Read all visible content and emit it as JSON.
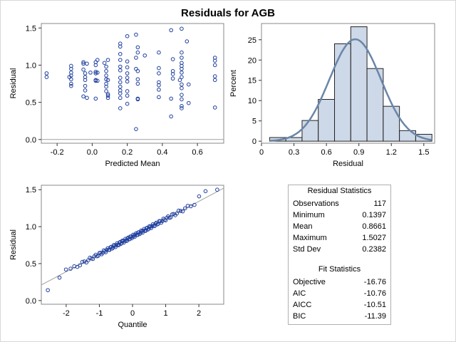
{
  "title": "Residuals for AGB",
  "chart_data": [
    {
      "type": "scatter",
      "name": "residual-vs-predicted",
      "xlabel": "Predicted Mean",
      "ylabel": "Residual",
      "xlim": [
        -0.29,
        0.75
      ],
      "ylim": [
        -0.05,
        1.56
      ],
      "xticks": [
        -0.2,
        0.0,
        0.2,
        0.4,
        0.6
      ],
      "xtick_labels": [
        "-0.2",
        "0.0",
        "0.2",
        "0.4",
        "0.6"
      ],
      "yticks": [
        0.0,
        0.5,
        1.0,
        1.5
      ],
      "ytick_labels": [
        "0.0",
        "0.5",
        "1.0",
        "1.5"
      ],
      "reference_line_y": 0,
      "points": [
        [
          -0.26,
          0.89
        ],
        [
          -0.26,
          0.84
        ],
        [
          -0.13,
          0.84
        ],
        [
          -0.12,
          0.99
        ],
        [
          -0.12,
          0.95
        ],
        [
          -0.12,
          0.9
        ],
        [
          -0.12,
          0.86
        ],
        [
          -0.12,
          0.81
        ],
        [
          -0.12,
          0.75
        ],
        [
          -0.12,
          0.72
        ],
        [
          -0.05,
          1.04
        ],
        [
          -0.05,
          1.02
        ],
        [
          -0.05,
          0.94
        ],
        [
          -0.04,
          0.89
        ],
        [
          -0.04,
          0.84
        ],
        [
          -0.04,
          0.8
        ],
        [
          -0.04,
          0.72
        ],
        [
          -0.04,
          0.66
        ],
        [
          -0.05,
          0.58
        ],
        [
          -0.03,
          0.56
        ],
        [
          -0.03,
          1.02
        ],
        [
          -0.01,
          0.9
        ],
        [
          0.02,
          1.04
        ],
        [
          0.02,
          1.0
        ],
        [
          0.02,
          0.91
        ],
        [
          0.02,
          0.89
        ],
        [
          0.02,
          0.8
        ],
        [
          0.02,
          0.79
        ],
        [
          0.02,
          0.55
        ],
        [
          0.03,
          1.07
        ],
        [
          0.03,
          0.9
        ],
        [
          0.03,
          0.79
        ],
        [
          0.07,
          1.03
        ],
        [
          0.08,
          0.98
        ],
        [
          0.08,
          0.92
        ],
        [
          0.08,
          0.86
        ],
        [
          0.08,
          0.81
        ],
        [
          0.08,
          0.75
        ],
        [
          0.08,
          0.71
        ],
        [
          0.08,
          0.65
        ],
        [
          0.09,
          0.61
        ],
        [
          0.09,
          0.59
        ],
        [
          0.09,
          0.56
        ],
        [
          0.09,
          1.07
        ],
        [
          0.09,
          0.8
        ],
        [
          0.16,
          1.29
        ],
        [
          0.16,
          1.25
        ],
        [
          0.16,
          1.15
        ],
        [
          0.16,
          1.07
        ],
        [
          0.16,
          0.98
        ],
        [
          0.16,
          0.93
        ],
        [
          0.16,
          0.83
        ],
        [
          0.16,
          0.77
        ],
        [
          0.16,
          0.71
        ],
        [
          0.16,
          0.66
        ],
        [
          0.16,
          0.62
        ],
        [
          0.16,
          0.56
        ],
        [
          0.16,
          0.42
        ],
        [
          0.2,
          1.39
        ],
        [
          0.2,
          1.05
        ],
        [
          0.2,
          0.97
        ],
        [
          0.2,
          0.89
        ],
        [
          0.2,
          0.83
        ],
        [
          0.2,
          0.78
        ],
        [
          0.2,
          0.65
        ],
        [
          0.2,
          0.59
        ],
        [
          0.2,
          0.48
        ],
        [
          0.25,
          1.41
        ],
        [
          0.26,
          1.24
        ],
        [
          0.26,
          1.17
        ],
        [
          0.25,
          1.1
        ],
        [
          0.25,
          0.95
        ],
        [
          0.26,
          0.92
        ],
        [
          0.26,
          0.81
        ],
        [
          0.26,
          0.75
        ],
        [
          0.26,
          0.54
        ],
        [
          0.26,
          0.55
        ],
        [
          0.25,
          0.14
        ],
        [
          0.3,
          1.13
        ],
        [
          0.38,
          1.17
        ],
        [
          0.38,
          0.96
        ],
        [
          0.38,
          0.89
        ],
        [
          0.38,
          0.77
        ],
        [
          0.38,
          0.73
        ],
        [
          0.38,
          0.67
        ],
        [
          0.38,
          0.57
        ],
        [
          0.45,
          1.47
        ],
        [
          0.46,
          1.08
        ],
        [
          0.46,
          0.92
        ],
        [
          0.46,
          0.88
        ],
        [
          0.46,
          0.82
        ],
        [
          0.45,
          0.55
        ],
        [
          0.45,
          0.31
        ],
        [
          0.51,
          1.49
        ],
        [
          0.51,
          1.17
        ],
        [
          0.51,
          1.1
        ],
        [
          0.51,
          1.03
        ],
        [
          0.51,
          0.99
        ],
        [
          0.51,
          0.95
        ],
        [
          0.51,
          0.9
        ],
        [
          0.51,
          0.84
        ],
        [
          0.5,
          0.8
        ],
        [
          0.51,
          0.74
        ],
        [
          0.51,
          0.69
        ],
        [
          0.51,
          0.6
        ],
        [
          0.51,
          0.54
        ],
        [
          0.51,
          0.45
        ],
        [
          0.51,
          0.42
        ],
        [
          0.54,
          1.32
        ],
        [
          0.55,
          0.74
        ],
        [
          0.55,
          0.49
        ],
        [
          0.7,
          1.1
        ],
        [
          0.7,
          1.06
        ],
        [
          0.7,
          1.0
        ],
        [
          0.7,
          0.85
        ],
        [
          0.7,
          0.8
        ],
        [
          0.7,
          0.43
        ]
      ]
    },
    {
      "type": "bar",
      "name": "residual-histogram",
      "xlabel": "Residual",
      "ylabel": "Percent",
      "xlim": [
        0.0,
        1.6
      ],
      "ylim": [
        -0.5,
        29
      ],
      "xticks": [
        0.0,
        0.3,
        0.6,
        0.9,
        1.2,
        1.5
      ],
      "xtick_labels": [
        "0",
        "0.3",
        "0.6",
        "0.9",
        "1.2",
        "1.5"
      ],
      "yticks": [
        0,
        5,
        10,
        15,
        20,
        25
      ],
      "ytick_labels": [
        "0",
        "5",
        "10",
        "15",
        "20",
        "25"
      ],
      "bin_edges": [
        0.075,
        0.225,
        0.375,
        0.525,
        0.675,
        0.825,
        0.975,
        1.125,
        1.275,
        1.425,
        1.575
      ],
      "values": [
        0.9,
        0.9,
        5.1,
        10.3,
        24.0,
        28.2,
        17.9,
        8.6,
        2.6,
        1.7
      ],
      "density_curve": {
        "type": "normal",
        "mean": 0.8661,
        "std": 0.2382,
        "bin_width": 0.15
      }
    },
    {
      "type": "scatter",
      "name": "qq-plot",
      "xlabel": "Quantile",
      "ylabel": "Residual",
      "xlim": [
        -2.75,
        2.75
      ],
      "ylim": [
        -0.05,
        1.56
      ],
      "xticks": [
        -2,
        -1,
        0,
        1,
        2
      ],
      "xtick_labels": [
        "-2",
        "-1",
        "0",
        "1",
        "2"
      ],
      "yticks": [
        0.0,
        0.5,
        1.0,
        1.5
      ],
      "ytick_labels": [
        "0.0",
        "0.5",
        "1.0",
        "1.5"
      ],
      "reference_line": {
        "intercept": 0.8661,
        "slope": 0.2382
      },
      "sample_count": 117,
      "tail_points": [
        [
          -2.63,
          0.14
        ],
        [
          2.63,
          1.5
        ],
        [
          2.3,
          1.48
        ],
        [
          -2.16,
          0.31
        ],
        [
          -1.95,
          0.42
        ],
        [
          2.07,
          1.41
        ]
      ]
    }
  ],
  "residual_statistics": {
    "title": "Residual Statistics",
    "rows": [
      {
        "label": "Observations",
        "value": "117"
      },
      {
        "label": "Minimum",
        "value": "0.1397"
      },
      {
        "label": "Mean",
        "value": "0.8661"
      },
      {
        "label": "Maximum",
        "value": "1.5027"
      },
      {
        "label": "Std Dev",
        "value": "0.2382"
      }
    ]
  },
  "fit_statistics": {
    "title": "Fit Statistics",
    "rows": [
      {
        "label": "Objective",
        "value": "-16.76"
      },
      {
        "label": "AIC",
        "value": "-10.76"
      },
      {
        "label": "AICC",
        "value": "-10.51"
      },
      {
        "label": "BIC",
        "value": "-11.39"
      }
    ]
  },
  "colors": {
    "marker": "#1f3f9e",
    "bar_fill": "#cdd8e8",
    "curve": "#6a86a8",
    "refline": "#a0a0a0",
    "axis": "#888888"
  }
}
